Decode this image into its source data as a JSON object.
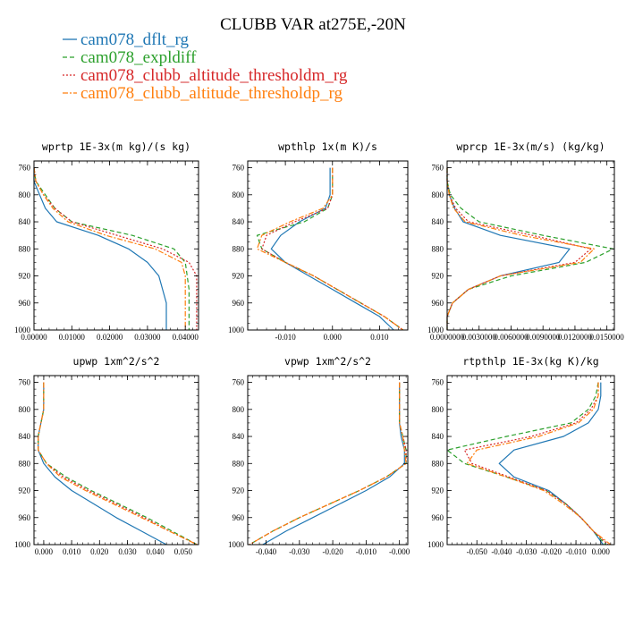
{
  "title": "CLUBB VAR at275E,-20N",
  "legend": [
    {
      "name": "cam078_dflt_rg",
      "color": "#1f77b4",
      "dash": ""
    },
    {
      "name": "cam078_expldiff",
      "color": "#2ca02c",
      "dash": "5,3"
    },
    {
      "name": "cam078_clubb_altitude_thresholdm_rg",
      "color": "#d62728",
      "dash": "2,2"
    },
    {
      "name": "cam078_clubb_altitude_thresholdp_rg",
      "color": "#ff7f0e",
      "dash": "6,2,2,2"
    }
  ],
  "chart_data": [
    {
      "type": "line",
      "title": "wprtp  1E-3x(m kg)/(s kg)",
      "xlim": [
        0,
        0.0435
      ],
      "ylim": [
        1000,
        750
      ],
      "xticks": [
        0,
        0.01,
        0.02,
        0.03,
        0.04
      ],
      "xtick_labels": [
        "0.00000",
        "0.01000",
        "0.02000",
        "0.03000",
        "0.04000"
      ],
      "yticks": [
        760,
        800,
        840,
        880,
        920,
        960,
        1000
      ],
      "y": [
        760,
        780,
        800,
        820,
        840,
        860,
        880,
        900,
        920,
        940,
        960,
        980,
        1000
      ],
      "series": [
        {
          "name": "cam078_dflt_rg",
          "values": [
            0,
            0,
            0.0015,
            0.003,
            0.006,
            0.017,
            0.025,
            0.03,
            0.033,
            0.034,
            0.035,
            0.035,
            0.035
          ]
        },
        {
          "name": "cam078_expldiff",
          "values": [
            0,
            0.0005,
            0.003,
            0.0055,
            0.01,
            0.026,
            0.037,
            0.04,
            0.0405,
            0.041,
            0.041,
            0.041,
            0.041
          ]
        },
        {
          "name": "cam078_clubb_altitude_thresholdm_rg",
          "values": [
            0,
            0.0005,
            0.0025,
            0.0055,
            0.01,
            0.022,
            0.034,
            0.041,
            0.043,
            0.043,
            0.043,
            0.043,
            0.043
          ]
        },
        {
          "name": "cam078_clubb_altitude_thresholdp_rg",
          "values": [
            0,
            0.0005,
            0.0025,
            0.005,
            0.009,
            0.019,
            0.032,
            0.039,
            0.04,
            0.04,
            0.04,
            0.04,
            0.04
          ]
        }
      ]
    },
    {
      "type": "line",
      "title": "wpthlp  1x(m K)/s",
      "xlim": [
        -0.018,
        0.016
      ],
      "ylim": [
        1000,
        750
      ],
      "xticks": [
        -0.01,
        0,
        0.01
      ],
      "xtick_labels": [
        "-0.010",
        "0.000",
        "0.010"
      ],
      "yticks": [
        760,
        800,
        840,
        880,
        920,
        960,
        1000
      ],
      "y": [
        760,
        780,
        800,
        820,
        840,
        860,
        880,
        900,
        920,
        940,
        960,
        980,
        1000
      ],
      "series": [
        {
          "name": "cam078_dflt_rg",
          "values": [
            -0.0005,
            -0.0005,
            -0.0005,
            -0.0015,
            -0.007,
            -0.011,
            -0.013,
            -0.01,
            -0.005,
            0.0,
            0.005,
            0.01,
            0.013
          ]
        },
        {
          "name": "cam078_expldiff",
          "values": [
            0,
            0,
            0,
            -0.001,
            -0.006,
            -0.016,
            -0.015,
            -0.01,
            -0.004,
            0.001,
            0.006,
            0.011,
            0.015
          ]
        },
        {
          "name": "cam078_clubb_altitude_thresholdm_rg",
          "values": [
            0,
            0,
            0,
            -0.001,
            -0.008,
            -0.014,
            -0.015,
            -0.01,
            -0.004,
            0.001,
            0.006,
            0.011,
            0.015
          ]
        },
        {
          "name": "cam078_clubb_altitude_thresholdp_rg",
          "values": [
            0,
            0,
            0,
            -0.002,
            -0.009,
            -0.015,
            -0.016,
            -0.01,
            -0.004,
            0.001,
            0.006,
            0.011,
            0.015
          ]
        }
      ]
    },
    {
      "type": "line",
      "title": "wprcp  1E-3x(m/s) (kg/kg)",
      "xlim": [
        0,
        0.0157
      ],
      "ylim": [
        1000,
        750
      ],
      "xticks": [
        0,
        0.003,
        0.006,
        0.009,
        0.012,
        0.015
      ],
      "xtick_labels": [
        "0.0000000",
        "0.0030000",
        "0.0060000",
        "0.0090000",
        "0.0120000",
        "0.0150000"
      ],
      "yticks": [
        760,
        800,
        840,
        880,
        920,
        960,
        1000
      ],
      "y": [
        760,
        780,
        800,
        820,
        840,
        860,
        880,
        900,
        920,
        940,
        960,
        980,
        1000
      ],
      "series": [
        {
          "name": "cam078_dflt_rg",
          "values": [
            0,
            0,
            0.0002,
            0.0007,
            0.0015,
            0.005,
            0.0115,
            0.0105,
            0.005,
            0.002,
            0.0005,
            0,
            0
          ]
        },
        {
          "name": "cam078_expldiff",
          "values": [
            0,
            0,
            0.0003,
            0.0013,
            0.003,
            0.009,
            0.0156,
            0.013,
            0.006,
            0.002,
            0.0005,
            0,
            0
          ]
        },
        {
          "name": "cam078_clubb_altitude_thresholdm_rg",
          "values": [
            0,
            0,
            0.0002,
            0.0008,
            0.002,
            0.008,
            0.0135,
            0.012,
            0.005,
            0.002,
            0.0005,
            0,
            0
          ]
        },
        {
          "name": "cam078_clubb_altitude_thresholdp_rg",
          "values": [
            0,
            0,
            0.0002,
            0.0006,
            0.0017,
            0.007,
            0.0138,
            0.0125,
            0.005,
            0.002,
            0.0005,
            0,
            0
          ]
        }
      ]
    },
    {
      "type": "line",
      "title": "upwp  1xm^2/s^2",
      "xlim": [
        -0.0035,
        0.0555
      ],
      "ylim": [
        1000,
        750
      ],
      "xticks": [
        0,
        0.01,
        0.02,
        0.03,
        0.04,
        0.05
      ],
      "xtick_labels": [
        "0.000",
        "0.010",
        "0.020",
        "0.030",
        "0.040",
        "0.050"
      ],
      "yticks": [
        760,
        800,
        840,
        880,
        920,
        960,
        1000
      ],
      "y": [
        760,
        780,
        800,
        820,
        840,
        860,
        880,
        900,
        920,
        940,
        960,
        980,
        1000
      ],
      "series": [
        {
          "name": "cam078_dflt_rg",
          "values": [
            0,
            0,
            0,
            -0.001,
            -0.002,
            -0.002,
            0.0,
            0.004,
            0.01,
            0.018,
            0.026,
            0.035,
            0.044
          ]
        },
        {
          "name": "cam078_expldiff",
          "values": [
            0,
            0,
            0,
            -0.001,
            -0.002,
            -0.002,
            0.001,
            0.008,
            0.017,
            0.027,
            0.037,
            0.046,
            0.055
          ]
        },
        {
          "name": "cam078_clubb_altitude_thresholdm_rg",
          "values": [
            0,
            0,
            0,
            -0.001,
            -0.002,
            -0.002,
            0.001,
            0.007,
            0.016,
            0.026,
            0.036,
            0.045,
            0.055
          ]
        },
        {
          "name": "cam078_clubb_altitude_thresholdp_rg",
          "values": [
            0,
            0,
            0,
            -0.001,
            -0.002,
            -0.002,
            0.001,
            0.006,
            0.015,
            0.025,
            0.035,
            0.045,
            0.055
          ]
        }
      ]
    },
    {
      "type": "line",
      "title": "vpwp  1xm^2/s^2",
      "xlim": [
        -0.0455,
        0.0025
      ],
      "ylim": [
        1000,
        750
      ],
      "xticks": [
        -0.04,
        -0.03,
        -0.02,
        -0.01,
        0
      ],
      "xtick_labels": [
        "-0.040",
        "-0.030",
        "-0.020",
        "-0.010",
        "-0.000"
      ],
      "yticks": [
        760,
        800,
        840,
        880,
        920,
        960,
        1000
      ],
      "y": [
        760,
        780,
        800,
        820,
        840,
        860,
        880,
        900,
        920,
        940,
        960,
        980,
        1000
      ],
      "series": [
        {
          "name": "cam078_dflt_rg",
          "values": [
            0,
            0,
            0,
            0,
            0.0005,
            0.0015,
            0.0015,
            -0.003,
            -0.01,
            -0.018,
            -0.026,
            -0.034,
            -0.041
          ]
        },
        {
          "name": "cam078_expldiff",
          "values": [
            0,
            0,
            0,
            0,
            0.001,
            0.002,
            0.002,
            -0.004,
            -0.012,
            -0.021,
            -0.03,
            -0.038,
            -0.045
          ]
        },
        {
          "name": "cam078_clubb_altitude_thresholdm_rg",
          "values": [
            0,
            0,
            0,
            0,
            0.001,
            0.002,
            0.002,
            -0.004,
            -0.012,
            -0.021,
            -0.03,
            -0.038,
            -0.045
          ]
        },
        {
          "name": "cam078_clubb_altitude_thresholdp_rg",
          "values": [
            0,
            0,
            0,
            0,
            0.001,
            0.0015,
            0.002,
            -0.004,
            -0.012,
            -0.021,
            -0.03,
            -0.038,
            -0.045
          ]
        }
      ]
    },
    {
      "type": "line",
      "title": "rtpthlp  1E-3x(kg K)/kg",
      "xlim": [
        -0.062,
        0.0055
      ],
      "ylim": [
        1000,
        750
      ],
      "xticks": [
        -0.05,
        -0.04,
        -0.03,
        -0.02,
        -0.01,
        0
      ],
      "xtick_labels": [
        "-0.050",
        "-0.040",
        "-0.030",
        "-0.020",
        "-0.010",
        "0.000"
      ],
      "yticks": [
        760,
        800,
        840,
        880,
        920,
        960,
        1000
      ],
      "y": [
        760,
        780,
        800,
        820,
        840,
        860,
        880,
        900,
        920,
        940,
        960,
        980,
        1000
      ],
      "series": [
        {
          "name": "cam078_dflt_rg",
          "values": [
            0,
            0,
            -0.001,
            -0.005,
            -0.015,
            -0.035,
            -0.041,
            -0.035,
            -0.021,
            -0.014,
            -0.008,
            -0.003,
            0.001
          ]
        },
        {
          "name": "cam078_expldiff",
          "values": [
            -0.001,
            -0.002,
            -0.005,
            -0.012,
            -0.038,
            -0.062,
            -0.055,
            -0.038,
            -0.022,
            -0.014,
            -0.008,
            -0.003,
            0.002
          ]
        },
        {
          "name": "cam078_clubb_altitude_thresholdm_rg",
          "values": [
            -0.001,
            -0.001,
            -0.004,
            -0.01,
            -0.028,
            -0.055,
            -0.052,
            -0.037,
            -0.022,
            -0.014,
            -0.008,
            -0.003,
            0.003
          ]
        },
        {
          "name": "cam078_clubb_altitude_thresholdp_rg",
          "values": [
            -0.001,
            -0.001,
            -0.003,
            -0.009,
            -0.025,
            -0.05,
            -0.054,
            -0.038,
            -0.023,
            -0.015,
            -0.008,
            -0.003,
            0.004
          ]
        }
      ]
    }
  ]
}
